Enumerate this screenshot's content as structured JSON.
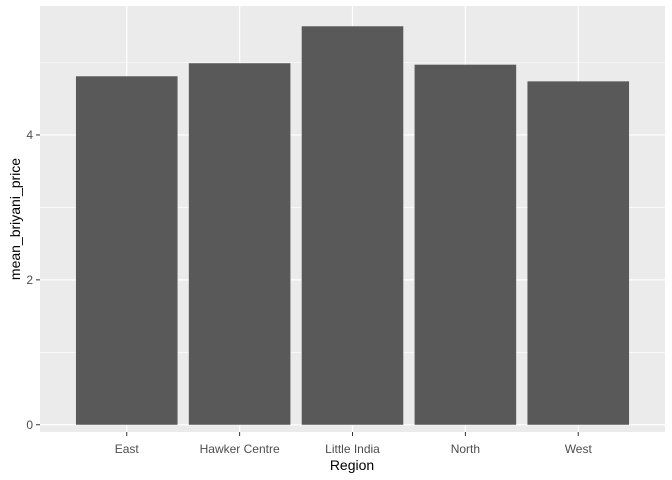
{
  "chart_data": {
    "type": "bar",
    "categories": [
      "East",
      "Hawker Centre",
      "Little India",
      "North",
      "West"
    ],
    "values": [
      4.81,
      4.99,
      5.5,
      4.97,
      4.74
    ],
    "xlabel": "Region",
    "ylabel": "mean_briyani_price",
    "ylim": [
      -0.1,
      5.78
    ],
    "yticks": [
      0,
      2,
      4
    ],
    "grid": true,
    "legend": "none",
    "colors": {
      "panel": "#ebebeb",
      "gridline": "#ffffff",
      "bar": "#595959",
      "tick_text": "#4d4d4d",
      "axis_title": "#000000"
    }
  }
}
